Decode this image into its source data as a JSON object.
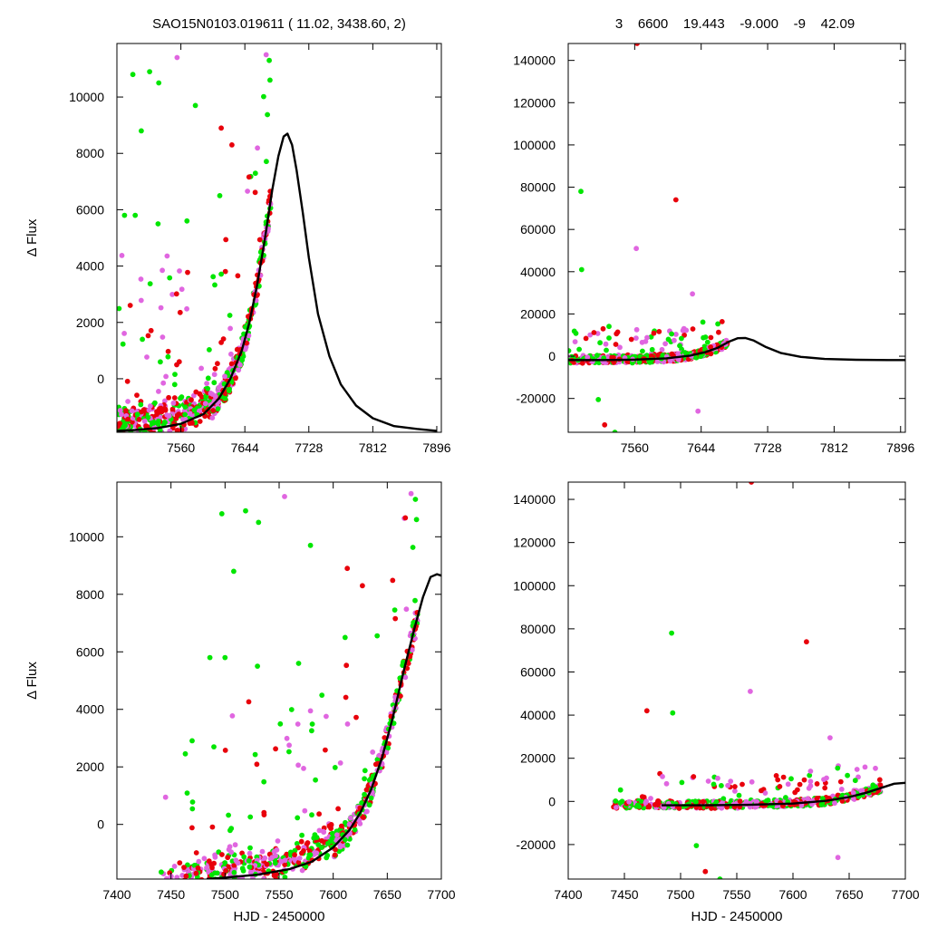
{
  "header": {
    "left_title": "SAO15N0103.019611 ( 11.02, 3438.60,    2)",
    "right_title": "3    6600    19.443    -9.000    -9    42.09"
  },
  "colors": {
    "series_1": "#e8000b",
    "series_2": "#e066e0",
    "series_3": "#00e600",
    "model": "#000000"
  },
  "chart_data": [
    {
      "id": "top-left",
      "type": "scatter",
      "xlim": [
        7476,
        7902
      ],
      "ylim": [
        -1900,
        11900
      ],
      "xticks": [
        7560,
        7644,
        7728,
        7812,
        7896
      ],
      "yticks": [
        0,
        2000,
        4000,
        6000,
        8000,
        10000
      ],
      "xlabel": "",
      "ylabel": "Δ Flux",
      "model": {
        "type": "line",
        "x": [
          7476,
          7500,
          7530,
          7560,
          7590,
          7610,
          7625,
          7640,
          7650,
          7660,
          7670,
          7680,
          7688,
          7695,
          7700,
          7706,
          7712,
          7720,
          7728,
          7740,
          7755,
          7770,
          7790,
          7812,
          7840,
          7870,
          7896
        ],
        "y": [
          -1850,
          -1820,
          -1750,
          -1600,
          -1250,
          -700,
          0,
          1000,
          2000,
          3300,
          4900,
          6700,
          7900,
          8600,
          8700,
          8300,
          7400,
          5900,
          4300,
          2300,
          800,
          -200,
          -950,
          -1400,
          -1680,
          -1780,
          -1850
        ]
      }
    },
    {
      "id": "top-right",
      "type": "scatter",
      "xlim": [
        7476,
        7902
      ],
      "ylim": [
        -36000,
        148000
      ],
      "xticks": [
        7560,
        7644,
        7728,
        7812,
        7896
      ],
      "yticks": [
        -20000,
        0,
        20000,
        40000,
        60000,
        80000,
        100000,
        120000,
        140000
      ],
      "xlabel": "",
      "ylabel": "",
      "model": {
        "type": "line",
        "x": [
          7476,
          7520,
          7560,
          7600,
          7630,
          7650,
          7665,
          7680,
          7690,
          7700,
          7710,
          7725,
          7745,
          7770,
          7800,
          7840,
          7880,
          7902
        ],
        "y": [
          -1800,
          -1800,
          -1600,
          -1000,
          300,
          2000,
          4000,
          7000,
          8500,
          8600,
          7500,
          4500,
          1500,
          -300,
          -1300,
          -1700,
          -1800,
          -1800
        ]
      }
    },
    {
      "id": "bottom-left",
      "type": "scatter",
      "xlim": [
        7400,
        7700
      ],
      "ylim": [
        -1900,
        11900
      ],
      "xticks": [
        7400,
        7450,
        7500,
        7550,
        7600,
        7650,
        7700
      ],
      "yticks": [
        0,
        2000,
        4000,
        6000,
        8000,
        10000
      ],
      "xlabel": "HJD - 2450000",
      "ylabel": "Δ Flux",
      "model": {
        "type": "line",
        "x": [
          7483,
          7500,
          7530,
          7560,
          7580,
          7600,
          7615,
          7625,
          7635,
          7645,
          7655,
          7665,
          7675,
          7683,
          7690,
          7696,
          7700
        ],
        "y": [
          -1900,
          -1850,
          -1750,
          -1550,
          -1300,
          -800,
          -200,
          400,
          1200,
          2300,
          3700,
          5300,
          6800,
          7900,
          8600,
          8700,
          8650
        ]
      }
    },
    {
      "id": "bottom-right",
      "type": "scatter",
      "xlim": [
        7400,
        7700
      ],
      "ylim": [
        -36000,
        148000
      ],
      "xticks": [
        7400,
        7450,
        7500,
        7550,
        7600,
        7650,
        7700
      ],
      "yticks": [
        -20000,
        0,
        20000,
        40000,
        60000,
        80000,
        100000,
        120000,
        140000
      ],
      "xlabel": "HJD - 2450000",
      "ylabel": "",
      "model": {
        "type": "line",
        "x": [
          7483,
          7520,
          7560,
          7600,
          7630,
          7650,
          7665,
          7680,
          7690,
          7700
        ],
        "y": [
          -1800,
          -1800,
          -1600,
          -1000,
          300,
          2000,
          4000,
          6500,
          8200,
          8600
        ]
      }
    }
  ]
}
